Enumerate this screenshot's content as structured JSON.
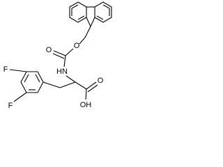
{
  "atoms": [
    {
      "label": "F"
    },
    {
      "label": "F"
    },
    {
      "label": "HN"
    },
    {
      "label": "O"
    },
    {
      "label": "O"
    },
    {
      "label": "O"
    },
    {
      "label": "OH"
    }
  ]
}
